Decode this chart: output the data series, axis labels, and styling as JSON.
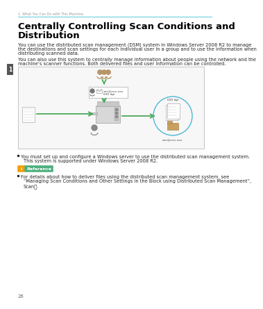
{
  "bg_color": "#ffffff",
  "header_text": "1. What You Can Do with This Machine",
  "header_line_color": "#5bc8dc",
  "header_text_color": "#999999",
  "tab_color": "#555555",
  "tab_text": "1",
  "title_line1": "Centrally Controlling Scan Conditions and",
  "title_line2": "Distribution",
  "title_color": "#000000",
  "body1_lines": [
    "You can use the distributed scan management (DSM) system in Windows Server 2008 R2 to manage",
    "the destinations and scan settings for each individual user in a group and to use the information when",
    "distributing scanned data."
  ],
  "body2_lines": [
    "You can also use this system to centrally manage information about people using the network and the",
    "machine’s scanner functions. Both delivered files and user information can be controlled."
  ],
  "bullet1_lines": [
    "You must set up and configure a Windows server to use the distributed scan management system.",
    "This system is supported under Windows Server 2008 R2."
  ],
  "ref_label": "Reference",
  "ref_color": "#ffffff",
  "ref_bg": "#4caf7d",
  "ref_icon_bg": "#f59c00",
  "bullet2_lines": [
    "For details about how to deliver files using the distributed scan management system, see",
    "“Managing Scan Conditions and Other Settings in the Block using Distributed Scan Management”,",
    "ScanⒼ."
  ],
  "page_number": "26",
  "arrow_color": "#4aaa5a",
  "circle_color": "#4db8d4",
  "body_font_size": 4.8,
  "title_font_size": 9.5
}
